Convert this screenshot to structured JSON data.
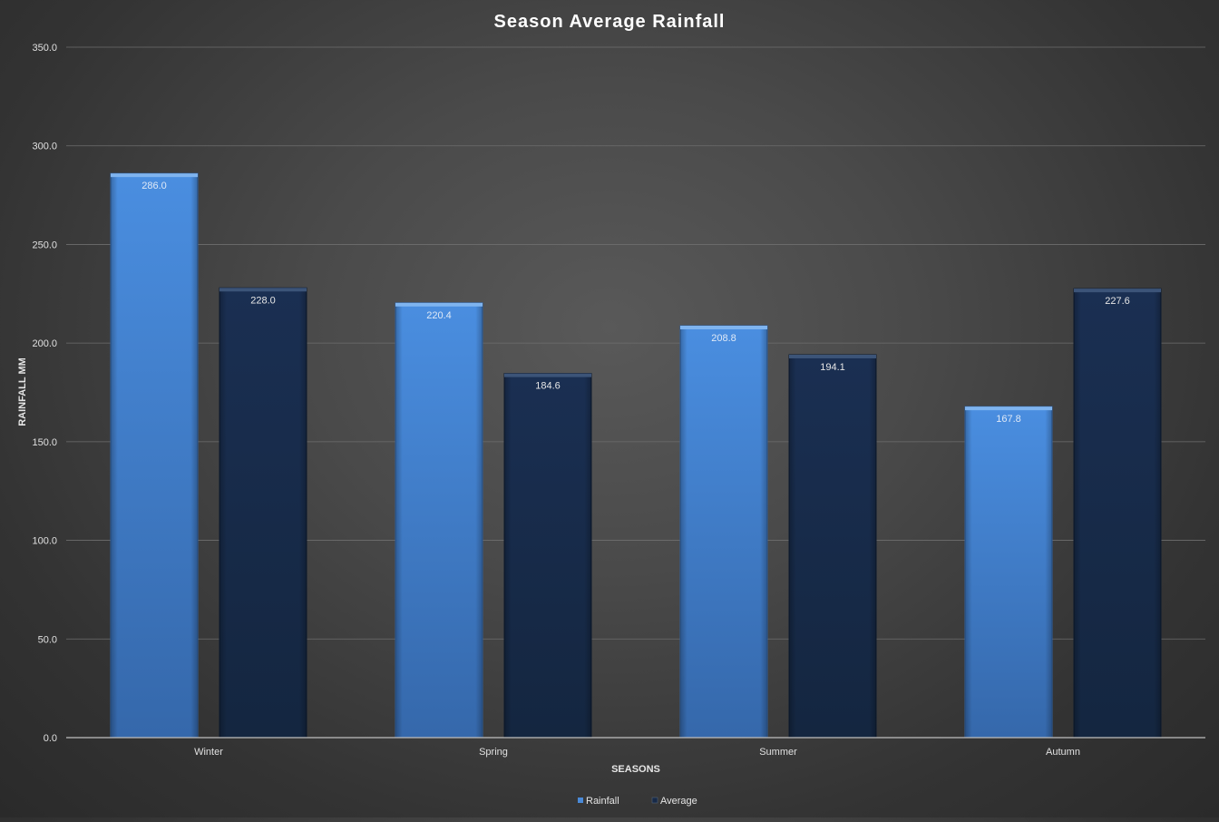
{
  "chart_data": {
    "type": "bar",
    "title": "Season Average Rainfall",
    "xlabel": "SEASONS",
    "ylabel": "RAINFALL MM",
    "categories": [
      "Winter",
      "Spring",
      "Summer",
      "Autumn"
    ],
    "series": [
      {
        "name": "Rainfall",
        "values": [
          286.0,
          220.4,
          208.8,
          167.8
        ],
        "color": "#4a8ad8"
      },
      {
        "name": "Average",
        "values": [
          228.0,
          184.6,
          194.1,
          227.6
        ],
        "color": "#172a48"
      }
    ],
    "ylim": [
      0,
      350
    ],
    "yticks": [
      "0.0",
      "50.0",
      "100.0",
      "150.0",
      "200.0",
      "250.0",
      "300.0",
      "350.0"
    ],
    "grid": true,
    "legend": "bottom-center",
    "data_labels": true
  }
}
